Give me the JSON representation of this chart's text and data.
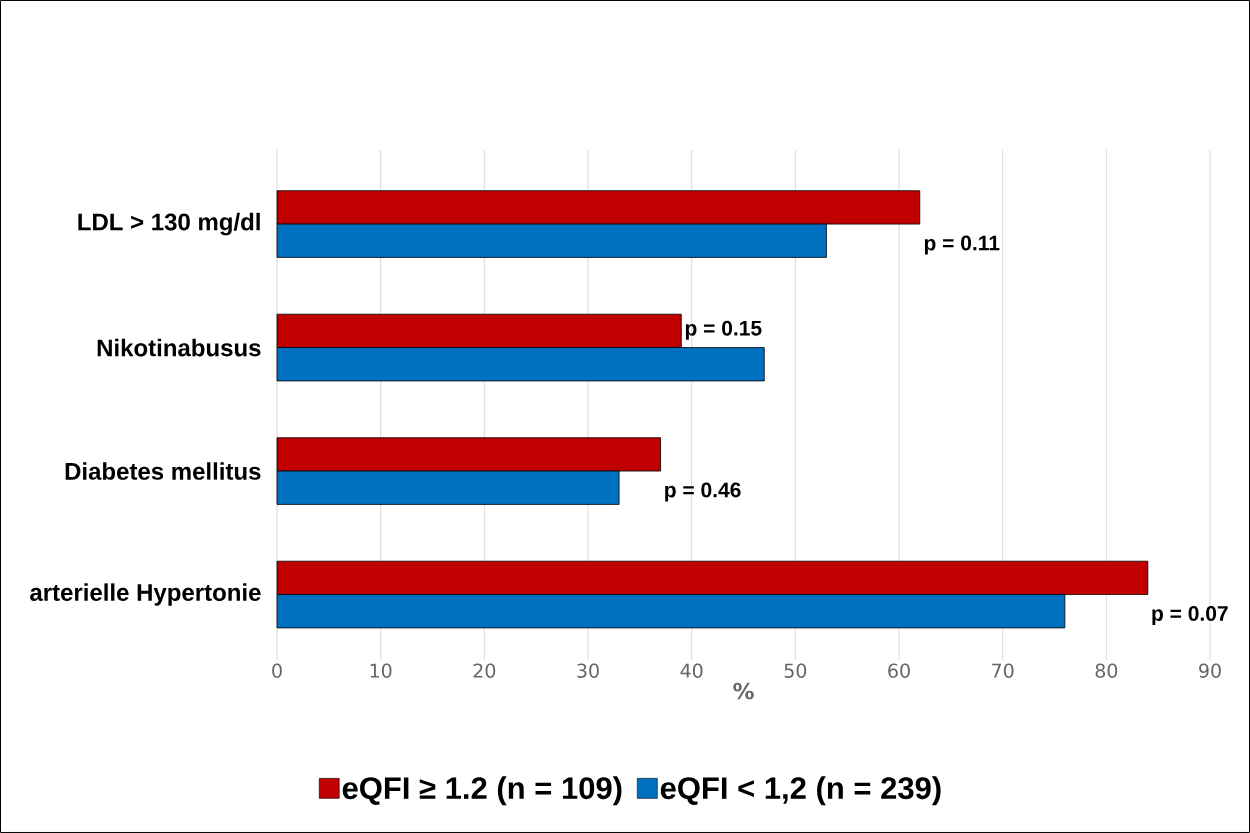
{
  "chart_data": {
    "type": "bar",
    "orientation": "horizontal",
    "xlabel": "%",
    "categories": [
      "LDL > 130 mg/dl",
      "Nikotinabusus",
      "Diabetes mellitus",
      "arterielle Hypertonie"
    ],
    "series": [
      {
        "name": "eQFI ≥ 1.2 (n = 109)",
        "color": "#c00000",
        "values": [
          62,
          39,
          37,
          84
        ]
      },
      {
        "name": "eQFI < 1,2 (n = 239)",
        "color": "#0070c0",
        "values": [
          53,
          47,
          33,
          76
        ]
      }
    ],
    "xlim": [
      0,
      90
    ],
    "xticks": [
      0,
      10,
      20,
      30,
      40,
      50,
      60,
      70,
      80,
      90
    ],
    "grid": "x",
    "legend": "bottom",
    "annotations": [
      "p = 0.11",
      "p = 0.15",
      "p = 0.46",
      "p = 0.07"
    ]
  }
}
